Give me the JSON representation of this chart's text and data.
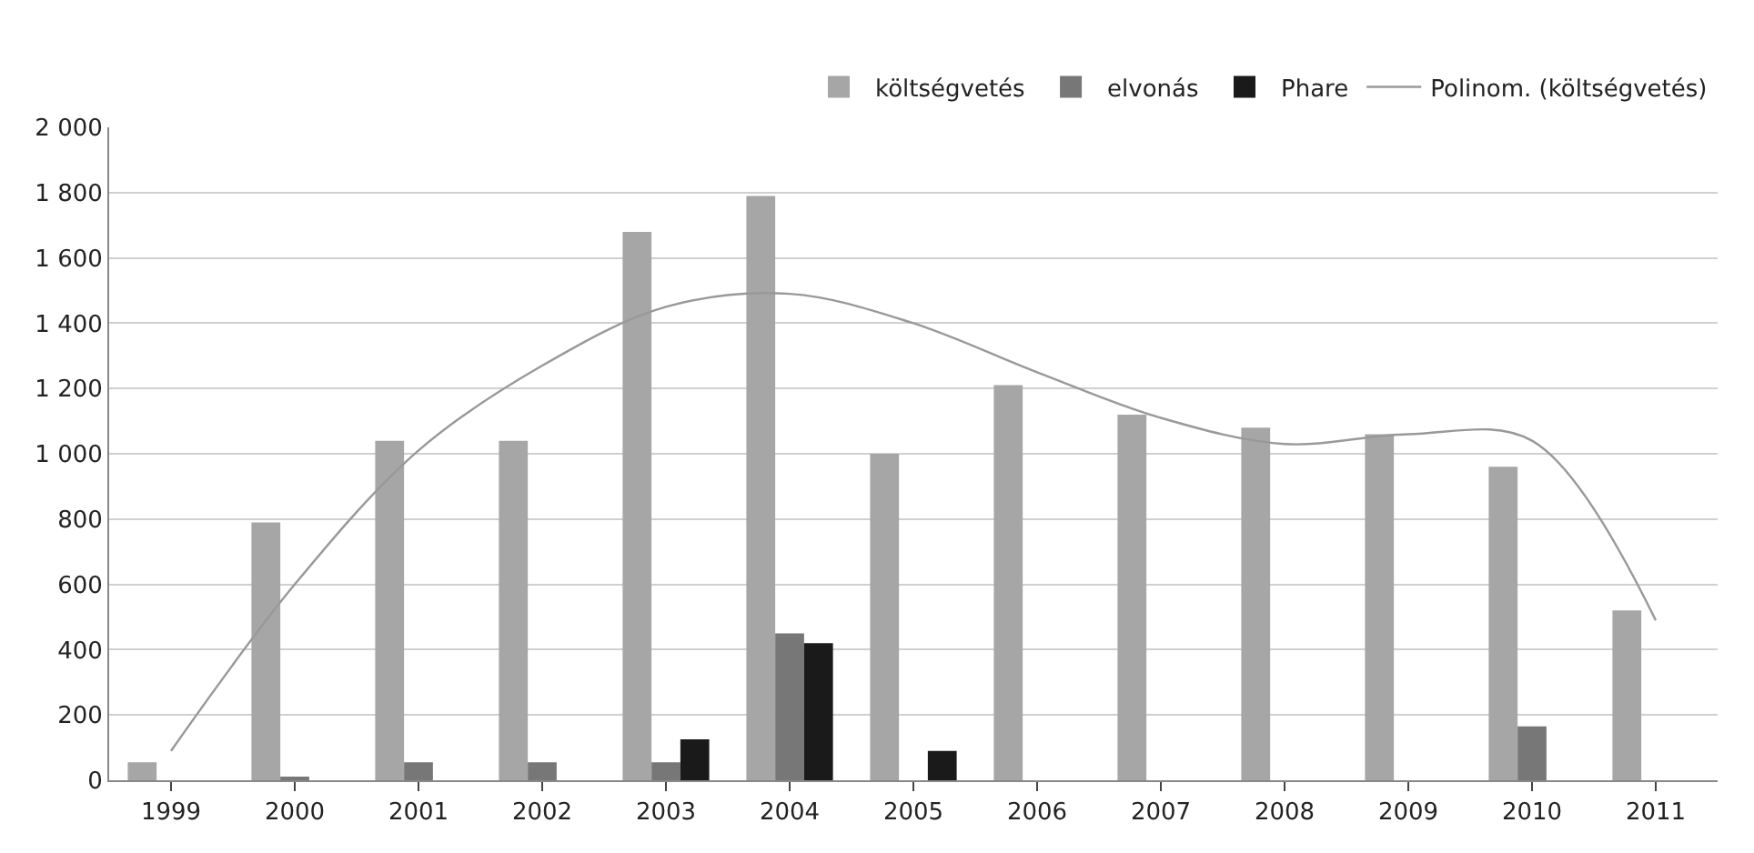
{
  "chart_data": {
    "type": "bar",
    "categories": [
      "1999",
      "2000",
      "2001",
      "2002",
      "2003",
      "2004",
      "2005",
      "2006",
      "2007",
      "2008",
      "2009",
      "2010",
      "2011"
    ],
    "series": [
      {
        "name": "költségvetés",
        "color": "#a6a6a6",
        "values": [
          55,
          790,
          1040,
          1040,
          1680,
          1790,
          1000,
          1210,
          1120,
          1080,
          1060,
          960,
          520
        ]
      },
      {
        "name": "elvonás",
        "color": "#777777",
        "values": [
          0,
          10,
          55,
          55,
          55,
          450,
          0,
          0,
          0,
          0,
          0,
          165,
          0
        ]
      },
      {
        "name": "Phare",
        "color": "#1a1a1a",
        "values": [
          0,
          0,
          0,
          0,
          125,
          420,
          90,
          0,
          0,
          0,
          0,
          0,
          0
        ]
      },
      {
        "name": "Polinom. (költségvetés)",
        "type": "line",
        "color": "#999999",
        "values": [
          90,
          600,
          1010,
          1270,
          1450,
          1490,
          1400,
          1250,
          1110,
          1030,
          1060,
          1040,
          490
        ]
      }
    ],
    "ylim": [
      0,
      2000
    ],
    "yticks": [
      {
        "value": 0,
        "label": "0"
      },
      {
        "value": 200,
        "label": "200"
      },
      {
        "value": 400,
        "label": "400"
      },
      {
        "value": 600,
        "label": "600"
      },
      {
        "value": 800,
        "label": "800"
      },
      {
        "value": 1000,
        "label": "1 000"
      },
      {
        "value": 1200,
        "label": "1 200"
      },
      {
        "value": 1400,
        "label": "1 400"
      },
      {
        "value": 1600,
        "label": "1 600"
      },
      {
        "value": 1800,
        "label": "1 800"
      },
      {
        "value": 2000,
        "label": "2 000"
      }
    ],
    "grid": "y",
    "legend": "top right",
    "marker": "none",
    "line_style": "solid"
  }
}
